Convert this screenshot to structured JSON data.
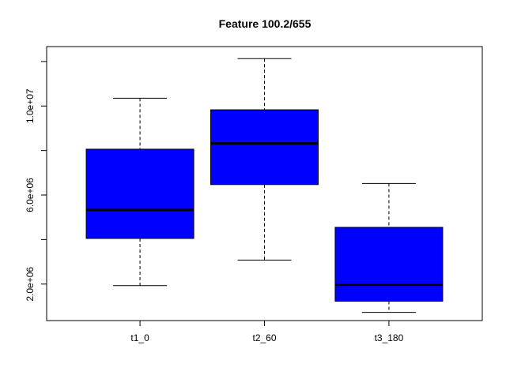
{
  "chart_data": {
    "type": "boxplot",
    "title": "Feature  100.2/655",
    "xlabel": "",
    "ylabel": "",
    "categories": [
      "t1_0",
      "t2_60",
      "t3_180"
    ],
    "boxes": [
      {
        "category": "t1_0",
        "whisker_low": 1930000,
        "q1": 4050000,
        "median": 5330000,
        "q3": 8060000,
        "whisker_high": 10350000
      },
      {
        "category": "t2_60",
        "whisker_low": 3080000,
        "q1": 6470000,
        "median": 8320000,
        "q3": 9830000,
        "whisker_high": 12130000
      },
      {
        "category": "t3_180",
        "whisker_low": 730000,
        "q1": 1230000,
        "median": 1970000,
        "q3": 4550000,
        "whisker_high": 6520000
      }
    ],
    "box_color": "#0000ff",
    "yticks": [
      {
        "value": 2000000,
        "label": "2.0e+06"
      },
      {
        "value": 4000000,
        "label": ""
      },
      {
        "value": 6000000,
        "label": "6.0e+06"
      },
      {
        "value": 8000000,
        "label": ""
      },
      {
        "value": 10000000,
        "label": "1.0e+07"
      },
      {
        "value": 12000000,
        "label": ""
      }
    ],
    "ylim": [
      360000,
      12670000
    ],
    "grid": false,
    "legend": "none"
  }
}
